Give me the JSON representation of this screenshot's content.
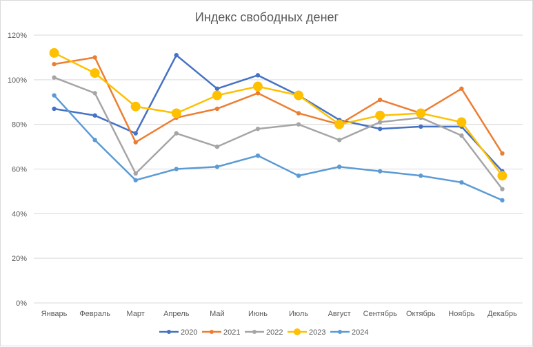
{
  "chart_data": {
    "type": "line",
    "title": "Индекс свободных денег",
    "xlabel": "",
    "ylabel": "",
    "ylim": [
      0,
      120
    ],
    "ytick_step": 20,
    "ytick_suffix": "%",
    "grid": true,
    "legend_position": "bottom",
    "categories": [
      "Январь",
      "Февраль",
      "Март",
      "Апрель",
      "Май",
      "Июнь",
      "Июль",
      "Август",
      "Сентябрь",
      "Октябрь",
      "Ноябрь",
      "Декабрь"
    ],
    "series": [
      {
        "name": "2020",
        "color": "#4472C4",
        "marker": "small",
        "values": [
          87,
          84,
          76,
          111,
          96,
          102,
          93,
          82,
          78,
          79,
          79,
          59
        ]
      },
      {
        "name": "2021",
        "color": "#ED7D31",
        "marker": "small",
        "values": [
          107,
          110,
          72,
          83,
          87,
          94,
          85,
          80,
          91,
          85,
          96,
          67
        ]
      },
      {
        "name": "2022",
        "color": "#A5A5A5",
        "marker": "small",
        "values": [
          101,
          94,
          58,
          76,
          70,
          78,
          80,
          73,
          81,
          83,
          75,
          51
        ]
      },
      {
        "name": "2023",
        "color": "#FFC000",
        "marker": "large",
        "values": [
          112,
          103,
          88,
          85,
          93,
          97,
          93,
          80,
          84,
          85,
          81,
          57
        ]
      },
      {
        "name": "2024",
        "color": "#5B9BD5",
        "marker": "small",
        "values": [
          93,
          73,
          55,
          60,
          61,
          66,
          57,
          61,
          59,
          57,
          54,
          46
        ]
      }
    ]
  }
}
